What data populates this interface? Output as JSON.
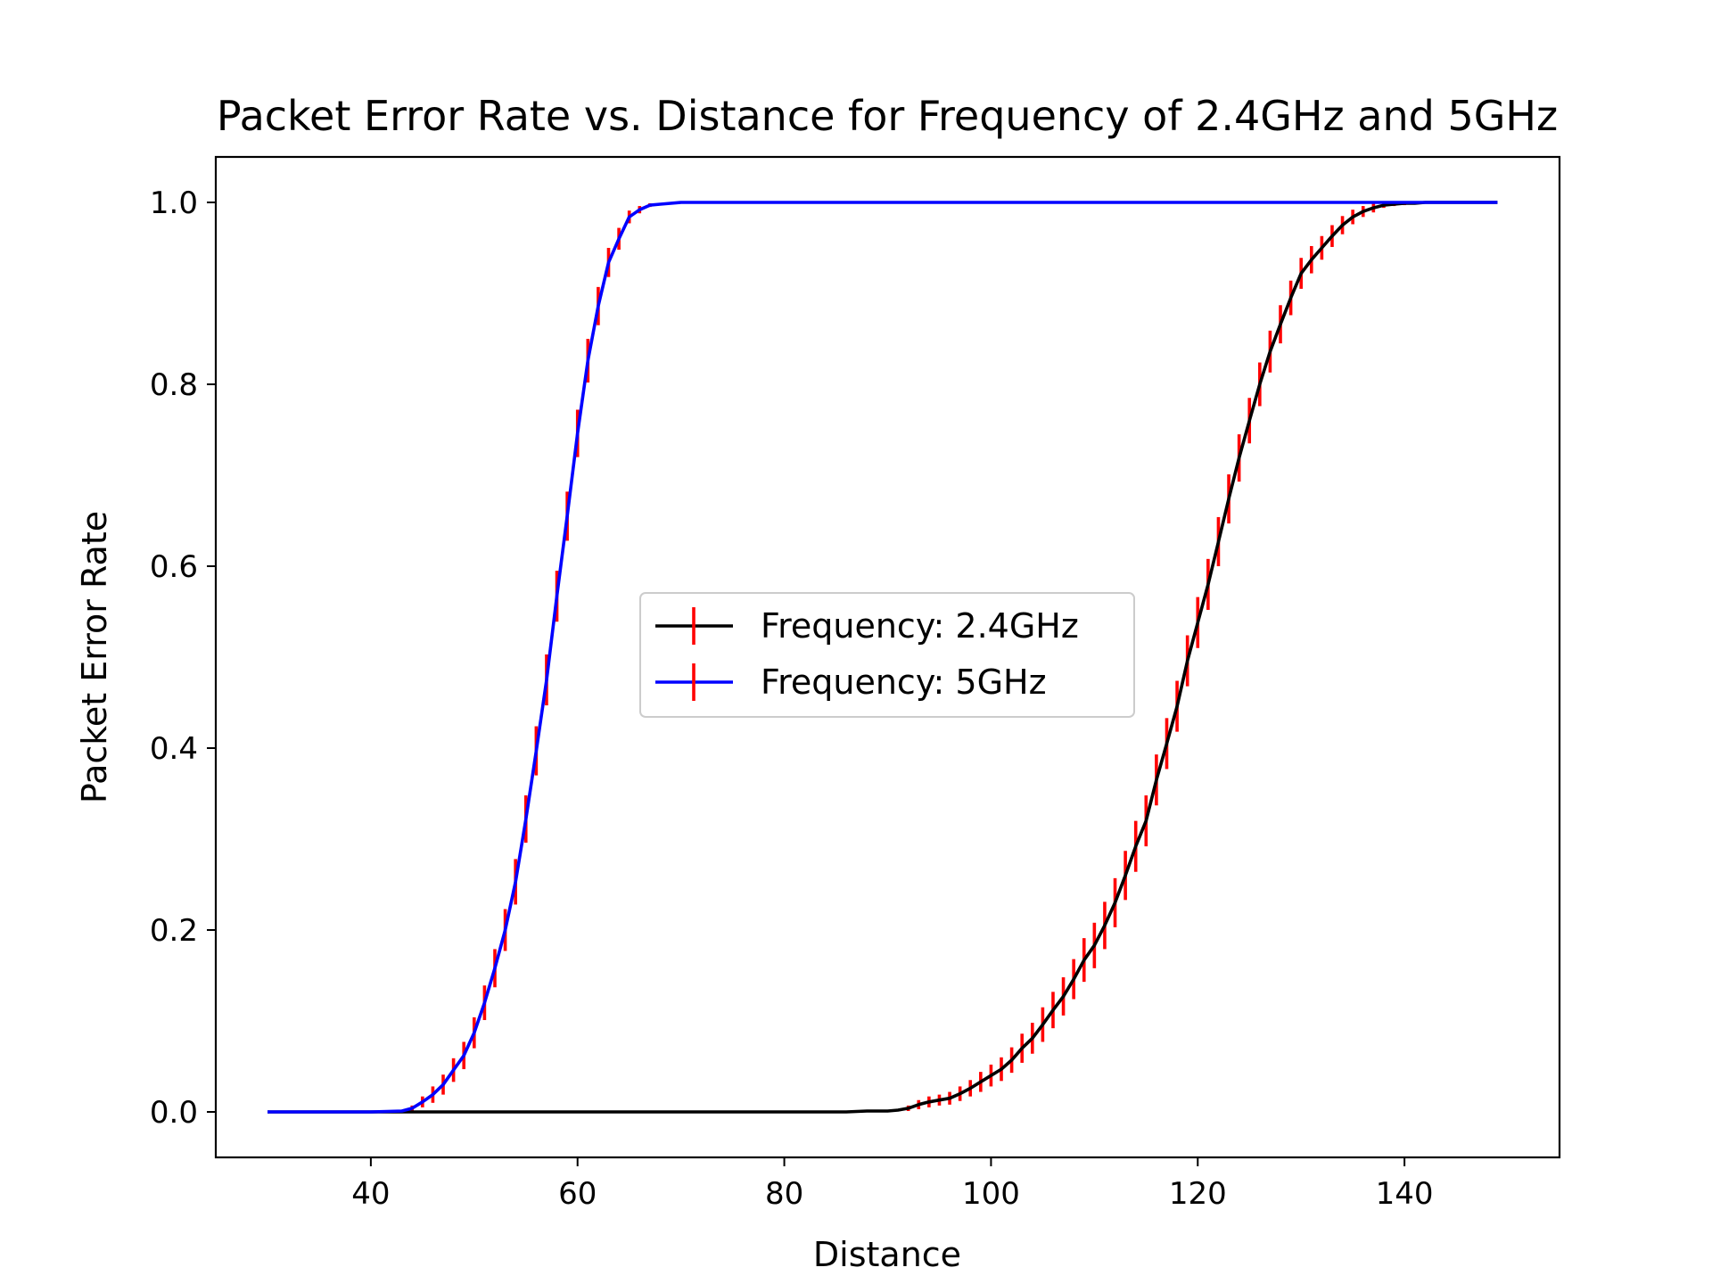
{
  "chart_data": {
    "type": "line",
    "title": "Packet Error Rate vs. Distance for Frequency of 2.4GHz and 5GHz",
    "xlabel": "Distance",
    "ylabel": "Packet Error Rate",
    "xlim": [
      25,
      155
    ],
    "ylim": [
      -0.05,
      1.05
    ],
    "x_ticks": [
      40,
      60,
      80,
      100,
      120,
      140
    ],
    "y_ticks": [
      0.0,
      0.2,
      0.4,
      0.6,
      0.8,
      1.0
    ],
    "x_tick_labels": [
      "40",
      "60",
      "80",
      "100",
      "120",
      "140"
    ],
    "y_tick_labels": [
      "0.0",
      "0.2",
      "0.4",
      "0.6",
      "0.8",
      "1.0"
    ],
    "grid": false,
    "legend_position": "center",
    "errorbar_color": "#ff0000",
    "series": [
      {
        "name": "Frequency: 2.4GHz",
        "color": "#000000",
        "x": [
          30,
          40,
          50,
          60,
          70,
          80,
          86,
          88,
          90,
          91,
          92,
          93,
          94,
          95,
          96,
          97,
          98,
          99,
          100,
          101,
          102,
          103,
          104,
          105,
          106,
          107,
          108,
          109,
          110,
          111,
          112,
          113,
          114,
          115,
          116,
          117,
          118,
          119,
          120,
          121,
          122,
          123,
          124,
          125,
          126,
          127,
          128,
          129,
          130,
          131,
          132,
          133,
          134,
          135,
          136,
          137,
          138,
          139,
          140,
          141,
          142,
          143,
          144,
          145,
          146,
          147,
          148,
          149
        ],
        "y": [
          0,
          0,
          0,
          0,
          0,
          0,
          0,
          0.001,
          0.001,
          0.002,
          0.004,
          0.008,
          0.011,
          0.013,
          0.015,
          0.02,
          0.026,
          0.033,
          0.04,
          0.047,
          0.057,
          0.07,
          0.081,
          0.096,
          0.112,
          0.127,
          0.146,
          0.167,
          0.183,
          0.205,
          0.23,
          0.26,
          0.292,
          0.32,
          0.365,
          0.405,
          0.446,
          0.496,
          0.538,
          0.58,
          0.627,
          0.674,
          0.719,
          0.76,
          0.8,
          0.836,
          0.866,
          0.895,
          0.922,
          0.937,
          0.95,
          0.963,
          0.975,
          0.984,
          0.99,
          0.994,
          0.997,
          0.998,
          0.999,
          0.999,
          1.0,
          1.0,
          1.0,
          1.0,
          1.0,
          1.0,
          1.0,
          1.0
        ],
        "yerr": [
          0,
          0,
          0,
          0,
          0,
          0,
          0,
          0,
          0,
          0,
          0.003,
          0.005,
          0.006,
          0.006,
          0.007,
          0.008,
          0.009,
          0.011,
          0.012,
          0.013,
          0.014,
          0.016,
          0.017,
          0.019,
          0.02,
          0.021,
          0.022,
          0.024,
          0.025,
          0.026,
          0.027,
          0.027,
          0.028,
          0.028,
          0.028,
          0.028,
          0.028,
          0.028,
          0.028,
          0.028,
          0.027,
          0.027,
          0.026,
          0.025,
          0.024,
          0.023,
          0.021,
          0.019,
          0.017,
          0.015,
          0.013,
          0.012,
          0.01,
          0.008,
          0.006,
          0.005,
          0.003,
          0.002,
          0.002,
          0.001,
          0,
          0,
          0,
          0,
          0,
          0,
          0,
          0
        ]
      },
      {
        "name": "Frequency: 5GHz",
        "color": "#0000ff",
        "x": [
          30,
          35,
          40,
          43,
          44,
          45,
          46,
          47,
          48,
          49,
          50,
          51,
          52,
          53,
          54,
          55,
          56,
          57,
          58,
          59,
          60,
          61,
          62,
          63,
          64,
          65,
          66,
          67,
          68,
          70,
          80,
          90,
          100,
          110,
          120,
          130,
          140,
          149
        ],
        "y": [
          0,
          0,
          0,
          0.001,
          0.004,
          0.011,
          0.019,
          0.03,
          0.046,
          0.062,
          0.087,
          0.12,
          0.158,
          0.2,
          0.253,
          0.322,
          0.397,
          0.475,
          0.567,
          0.655,
          0.746,
          0.826,
          0.886,
          0.934,
          0.96,
          0.984,
          0.992,
          0.997,
          0.998,
          1.0,
          1.0,
          1.0,
          1.0,
          1.0,
          1.0,
          1.0,
          1.0,
          1.0
        ],
        "yerr": [
          0,
          0,
          0,
          0,
          0.003,
          0.006,
          0.009,
          0.011,
          0.013,
          0.015,
          0.017,
          0.019,
          0.021,
          0.023,
          0.025,
          0.026,
          0.027,
          0.028,
          0.028,
          0.027,
          0.026,
          0.024,
          0.021,
          0.016,
          0.012,
          0.007,
          0.004,
          0.002,
          0.001,
          0,
          0,
          0,
          0,
          0,
          0,
          0,
          0,
          0
        ]
      }
    ]
  }
}
